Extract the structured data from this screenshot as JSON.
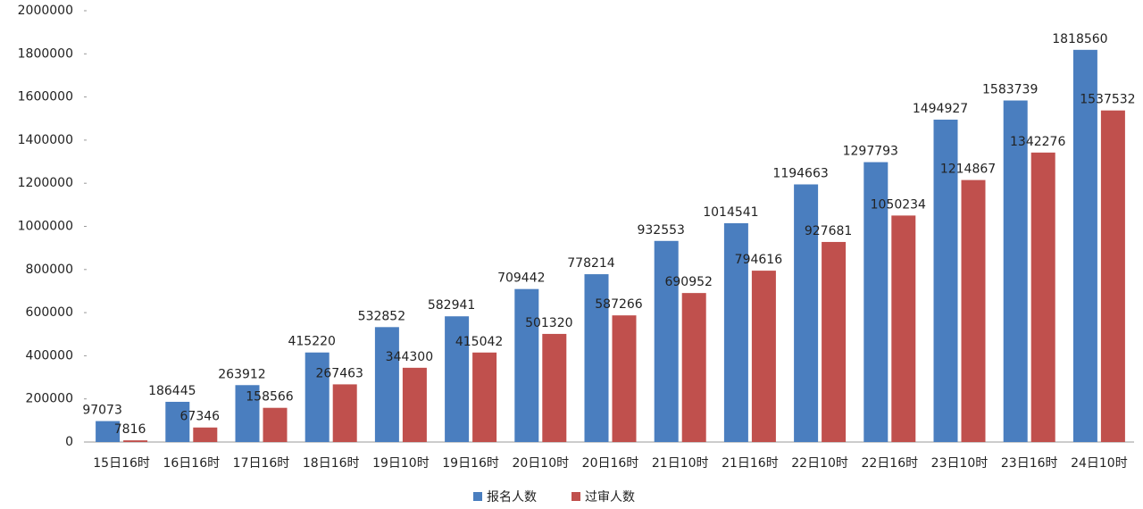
{
  "chart_data": {
    "type": "bar",
    "categories": [
      "15日16时",
      "16日16时",
      "17日16时",
      "18日16时",
      "19日10时",
      "19日16时",
      "20日10时",
      "20日16时",
      "21日10时",
      "21日16时",
      "22日10时",
      "22日16时",
      "23日10时",
      "23日16时",
      "24日10时"
    ],
    "series": [
      {
        "name": "报名人数",
        "color": "#4a7ebf",
        "values": [
          97073,
          186445,
          263912,
          415220,
          532852,
          582941,
          709442,
          778214,
          932553,
          1014541,
          1194663,
          1297793,
          1494927,
          1583739,
          1818560
        ]
      },
      {
        "name": "过审人数",
        "color": "#c0504d",
        "values": [
          7816,
          67346,
          158566,
          267463,
          344300,
          415042,
          501320,
          587266,
          690952,
          794616,
          927681,
          1050234,
          1214867,
          1342276,
          1537532
        ]
      }
    ],
    "ylim": [
      0,
      2000000
    ],
    "yticks": [
      0,
      200000,
      400000,
      600000,
      800000,
      1000000,
      1200000,
      1400000,
      1600000,
      1800000,
      2000000
    ],
    "grid": false
  }
}
